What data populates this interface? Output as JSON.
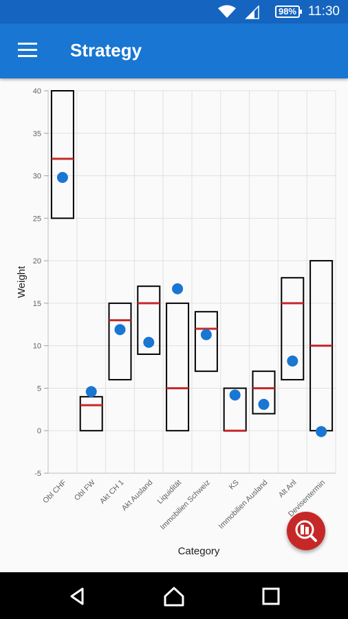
{
  "status_bar": {
    "time": "11:30",
    "battery": "98%"
  },
  "app_bar": {
    "title": "Strategy",
    "menu_icon": "hamburger-menu-icon"
  },
  "chart_data": {
    "type": "box",
    "xlabel": "Category",
    "ylabel": "Weight",
    "ylim": [
      -5,
      40
    ],
    "yticks": [
      -5,
      0,
      5,
      10,
      15,
      20,
      25,
      30,
      35,
      40
    ],
    "grid": true,
    "categories": [
      "Obl CHF",
      "Obl FW",
      "Akt CH 1",
      "Akt Ausland",
      "Liquidität",
      "Immobilien Schweiz",
      "KS",
      "Immobilien Ausland",
      "Alt Anl",
      "Devisentermin"
    ],
    "series": [
      {
        "name": "",
        "kind": "range_min",
        "values": [
          25,
          0,
          6,
          9,
          0,
          7,
          0,
          2,
          6,
          0
        ]
      },
      {
        "name": "",
        "kind": "range_max",
        "values": [
          40,
          4,
          15,
          17,
          15,
          14,
          5,
          7,
          18,
          20
        ]
      },
      {
        "name": "",
        "kind": "target",
        "values": [
          32,
          3,
          13,
          15,
          5,
          12,
          0,
          5,
          15,
          10
        ]
      },
      {
        "name": "",
        "kind": "actual",
        "values": [
          29.8,
          4.6,
          11.9,
          10.4,
          16.7,
          11.3,
          4.2,
          3.1,
          8.2,
          -0.1
        ]
      }
    ],
    "colors": {
      "box": "#000000",
      "target": "#c62828",
      "actual": "#1976d2",
      "grid": "#e0e0e0"
    }
  },
  "fab": {
    "icon": "portfolio-search-icon",
    "color": "#c62828"
  },
  "nav_bar": {
    "back": "back-icon",
    "home": "home-icon",
    "recents": "recents-icon"
  }
}
